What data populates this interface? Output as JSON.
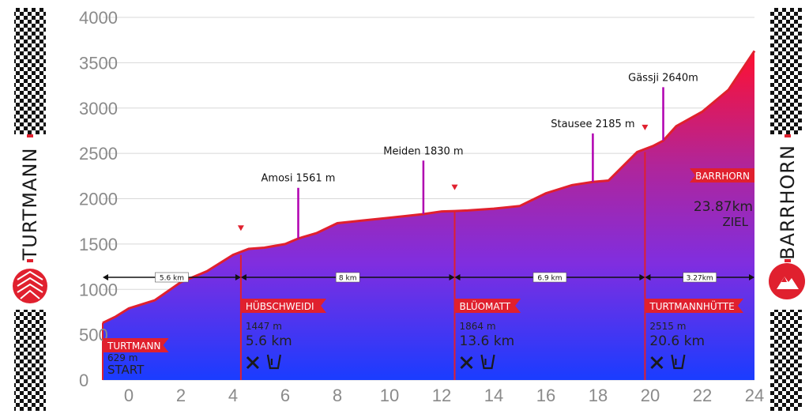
{
  "colors": {
    "accent": "#e0202e",
    "area_top": "#ff1030",
    "area_mid": "#8a2be2",
    "area_bottom": "#1a3cff",
    "poi_line": "#b000b0"
  },
  "side": {
    "left": "TURTMANN",
    "right": "BARRHORN",
    "left_icon": "turtmann-logo-icon",
    "right_icon": "mountain-icon"
  },
  "chart_data": {
    "type": "area",
    "xlim": [
      -1,
      24
    ],
    "ylim": [
      0,
      4000
    ],
    "x_ticks": [
      "0",
      "2",
      "4",
      "6",
      "8",
      "10",
      "12",
      "14",
      "16",
      "18",
      "20",
      "22",
      "24"
    ],
    "y_ticks": [
      "0",
      "500",
      "1000",
      "1500",
      "2000",
      "2500",
      "3000",
      "3500",
      "4000"
    ],
    "grid": true,
    "profile": [
      {
        "x": -1,
        "y": 630
      },
      {
        "x": -0.5,
        "y": 700
      },
      {
        "x": 0,
        "y": 790
      },
      {
        "x": 1,
        "y": 880
      },
      {
        "x": 2,
        "y": 1080
      },
      {
        "x": 3,
        "y": 1200
      },
      {
        "x": 4,
        "y": 1380
      },
      {
        "x": 4.6,
        "y": 1447
      },
      {
        "x": 5.2,
        "y": 1460
      },
      {
        "x": 6,
        "y": 1500
      },
      {
        "x": 6.5,
        "y": 1561
      },
      {
        "x": 7.2,
        "y": 1620
      },
      {
        "x": 8,
        "y": 1730
      },
      {
        "x": 9,
        "y": 1760
      },
      {
        "x": 10,
        "y": 1790
      },
      {
        "x": 11.3,
        "y": 1830
      },
      {
        "x": 12,
        "y": 1860
      },
      {
        "x": 12.5,
        "y": 1864
      },
      {
        "x": 13,
        "y": 1870
      },
      {
        "x": 14,
        "y": 1890
      },
      {
        "x": 15,
        "y": 1920
      },
      {
        "x": 16,
        "y": 2060
      },
      {
        "x": 17,
        "y": 2150
      },
      {
        "x": 17.8,
        "y": 2185
      },
      {
        "x": 18.4,
        "y": 2200
      },
      {
        "x": 19.5,
        "y": 2515
      },
      {
        "x": 20.1,
        "y": 2580
      },
      {
        "x": 20.5,
        "y": 2640
      },
      {
        "x": 21,
        "y": 2800
      },
      {
        "x": 22,
        "y": 2960
      },
      {
        "x": 23,
        "y": 3200
      },
      {
        "x": 24,
        "y": 3630
      }
    ],
    "pois": [
      {
        "label": "Amosi 1561 m",
        "x": 6.5,
        "y": 1561,
        "top": 2120
      },
      {
        "label": "Meiden 1830 m",
        "x": 11.3,
        "y": 1830,
        "top": 2420
      },
      {
        "label": "Stausee 2185 m",
        "x": 17.8,
        "y": 2185,
        "top": 2720
      },
      {
        "label": "Gässji 2640m",
        "x": 20.5,
        "y": 2640,
        "top": 3230
      }
    ],
    "markers": [
      {
        "x": 4.3,
        "y": 1680
      },
      {
        "x": 12.5,
        "y": 2130
      },
      {
        "x": 19.8,
        "y": 2790
      }
    ],
    "segments": [
      {
        "label": "5.6 km",
        "from": -1,
        "to": 4.3
      },
      {
        "label": "8 km",
        "from": 4.3,
        "to": 12.5
      },
      {
        "label": "6.9 km",
        "from": 12.5,
        "to": 19.8
      },
      {
        "label": "3.27km",
        "from": 19.8,
        "to": 24
      }
    ],
    "stations": [
      {
        "name": "TURTMANN",
        "alt": "629 m",
        "km": "",
        "tag": "START",
        "x": -1,
        "services": false
      },
      {
        "name": "HÜBSCHWEIDI",
        "alt": "1447 m",
        "km": "5.6 km",
        "tag": "",
        "x": 4.3,
        "services": true
      },
      {
        "name": "BLÜOMATT",
        "alt": "1864 m",
        "km": "13.6 km",
        "tag": "",
        "x": 12.5,
        "services": true
      },
      {
        "name": "TURTMANNHÜTTE",
        "alt": "2515 m",
        "km": "20.6 km",
        "tag": "",
        "x": 19.8,
        "services": true
      }
    ],
    "finish": {
      "name": "BARRHORN",
      "km": "23.87km",
      "tag": "ZIEL"
    }
  }
}
